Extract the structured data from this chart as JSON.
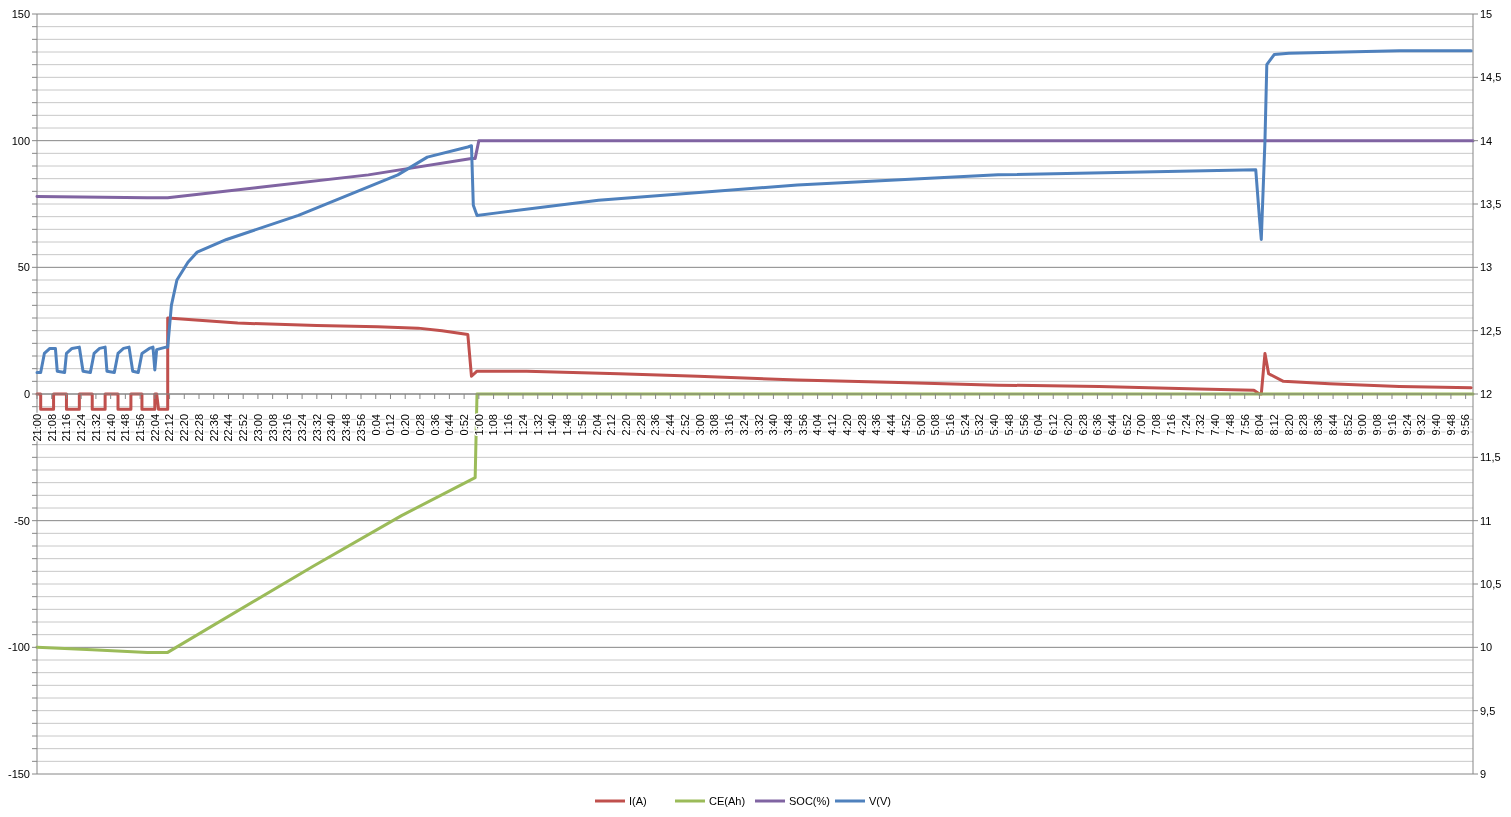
{
  "chart_data": {
    "type": "line",
    "legend": "bottom",
    "grid": "y",
    "line_style": "solid",
    "marker": "none",
    "xlim": [
      "2000-01-01T21:00",
      "2000-01-02T10:00"
    ],
    "xticks": [
      {
        "value": "2000-01-01T21:00",
        "label": "21:00"
      },
      {
        "value": "2000-01-01T21:08",
        "label": "21:08"
      },
      {
        "value": "2000-01-01T21:16",
        "label": "21:16"
      },
      {
        "value": "2000-01-01T21:24",
        "label": "21:24"
      },
      {
        "value": "2000-01-01T21:32",
        "label": "21:32"
      },
      {
        "value": "2000-01-01T21:40",
        "label": "21:40"
      },
      {
        "value": "2000-01-01T21:48",
        "label": "21:48"
      },
      {
        "value": "2000-01-01T21:56",
        "label": "21:56"
      },
      {
        "value": "2000-01-01T22:04",
        "label": "22:04"
      },
      {
        "value": "2000-01-01T22:12",
        "label": "22:12"
      },
      {
        "value": "2000-01-01T22:20",
        "label": "22:20"
      },
      {
        "value": "2000-01-01T22:28",
        "label": "22:28"
      },
      {
        "value": "2000-01-01T22:36",
        "label": "22:36"
      },
      {
        "value": "2000-01-01T22:44",
        "label": "22:44"
      },
      {
        "value": "2000-01-01T22:52",
        "label": "22:52"
      },
      {
        "value": "2000-01-01T23:00",
        "label": "23:00"
      },
      {
        "value": "2000-01-01T23:08",
        "label": "23:08"
      },
      {
        "value": "2000-01-01T23:16",
        "label": "23:16"
      },
      {
        "value": "2000-01-01T23:24",
        "label": "23:24"
      },
      {
        "value": "2000-01-01T23:32",
        "label": "23:32"
      },
      {
        "value": "2000-01-01T23:40",
        "label": "23:40"
      },
      {
        "value": "2000-01-01T23:48",
        "label": "23:48"
      },
      {
        "value": "2000-01-01T23:56",
        "label": "23:56"
      },
      {
        "value": "2000-01-02T00:04",
        "label": "0:04"
      },
      {
        "value": "2000-01-02T00:12",
        "label": "0:12"
      },
      {
        "value": "2000-01-02T00:20",
        "label": "0:20"
      },
      {
        "value": "2000-01-02T00:28",
        "label": "0:28"
      },
      {
        "value": "2000-01-02T00:36",
        "label": "0:36"
      },
      {
        "value": "2000-01-02T00:44",
        "label": "0:44"
      },
      {
        "value": "2000-01-02T00:52",
        "label": "0:52"
      },
      {
        "value": "2000-01-02T01:00",
        "label": "1:00"
      },
      {
        "value": "2000-01-02T01:08",
        "label": "1:08"
      },
      {
        "value": "2000-01-02T01:16",
        "label": "1:16"
      },
      {
        "value": "2000-01-02T01:24",
        "label": "1:24"
      },
      {
        "value": "2000-01-02T01:32",
        "label": "1:32"
      },
      {
        "value": "2000-01-02T01:40",
        "label": "1:40"
      },
      {
        "value": "2000-01-02T01:48",
        "label": "1:48"
      },
      {
        "value": "2000-01-02T01:56",
        "label": "1:56"
      },
      {
        "value": "2000-01-02T02:04",
        "label": "2:04"
      },
      {
        "value": "2000-01-02T02:12",
        "label": "2:12"
      },
      {
        "value": "2000-01-02T02:20",
        "label": "2:20"
      },
      {
        "value": "2000-01-02T02:28",
        "label": "2:28"
      },
      {
        "value": "2000-01-02T02:36",
        "label": "2:36"
      },
      {
        "value": "2000-01-02T02:44",
        "label": "2:44"
      },
      {
        "value": "2000-01-02T02:52",
        "label": "2:52"
      },
      {
        "value": "2000-01-02T03:00",
        "label": "3:00"
      },
      {
        "value": "2000-01-02T03:08",
        "label": "3:08"
      },
      {
        "value": "2000-01-02T03:16",
        "label": "3:16"
      },
      {
        "value": "2000-01-02T03:24",
        "label": "3:24"
      },
      {
        "value": "2000-01-02T03:32",
        "label": "3:32"
      },
      {
        "value": "2000-01-02T03:40",
        "label": "3:40"
      },
      {
        "value": "2000-01-02T03:48",
        "label": "3:48"
      },
      {
        "value": "2000-01-02T03:56",
        "label": "3:56"
      },
      {
        "value": "2000-01-02T04:04",
        "label": "4:04"
      },
      {
        "value": "2000-01-02T04:12",
        "label": "4:12"
      },
      {
        "value": "2000-01-02T04:20",
        "label": "4:20"
      },
      {
        "value": "2000-01-02T04:28",
        "label": "4:28"
      },
      {
        "value": "2000-01-02T04:36",
        "label": "4:36"
      },
      {
        "value": "2000-01-02T04:44",
        "label": "4:44"
      },
      {
        "value": "2000-01-02T04:52",
        "label": "4:52"
      },
      {
        "value": "2000-01-02T05:00",
        "label": "5:00"
      },
      {
        "value": "2000-01-02T05:08",
        "label": "5:08"
      },
      {
        "value": "2000-01-02T05:16",
        "label": "5:16"
      },
      {
        "value": "2000-01-02T05:24",
        "label": "5:24"
      },
      {
        "value": "2000-01-02T05:32",
        "label": "5:32"
      },
      {
        "value": "2000-01-02T05:40",
        "label": "5:40"
      },
      {
        "value": "2000-01-02T05:48",
        "label": "5:48"
      },
      {
        "value": "2000-01-02T05:56",
        "label": "5:56"
      },
      {
        "value": "2000-01-02T06:04",
        "label": "6:04"
      },
      {
        "value": "2000-01-02T06:12",
        "label": "6:12"
      },
      {
        "value": "2000-01-02T06:20",
        "label": "6:20"
      },
      {
        "value": "2000-01-02T06:28",
        "label": "6:28"
      },
      {
        "value": "2000-01-02T06:36",
        "label": "6:36"
      },
      {
        "value": "2000-01-02T06:44",
        "label": "6:44"
      },
      {
        "value": "2000-01-02T06:52",
        "label": "6:52"
      },
      {
        "value": "2000-01-02T07:00",
        "label": "7:00"
      },
      {
        "value": "2000-01-02T07:08",
        "label": "7:08"
      },
      {
        "value": "2000-01-02T07:16",
        "label": "7:16"
      },
      {
        "value": "2000-01-02T07:24",
        "label": "7:24"
      },
      {
        "value": "2000-01-02T07:32",
        "label": "7:32"
      },
      {
        "value": "2000-01-02T07:40",
        "label": "7:40"
      },
      {
        "value": "2000-01-02T07:48",
        "label": "7:48"
      },
      {
        "value": "2000-01-02T07:56",
        "label": "7:56"
      },
      {
        "value": "2000-01-02T08:04",
        "label": "8:04"
      },
      {
        "value": "2000-01-02T08:12",
        "label": "8:12"
      },
      {
        "value": "2000-01-02T08:20",
        "label": "8:20"
      },
      {
        "value": "2000-01-02T08:28",
        "label": "8:28"
      },
      {
        "value": "2000-01-02T08:36",
        "label": "8:36"
      },
      {
        "value": "2000-01-02T08:44",
        "label": "8:44"
      },
      {
        "value": "2000-01-02T08:52",
        "label": "8:52"
      },
      {
        "value": "2000-01-02T09:00",
        "label": "9:00"
      },
      {
        "value": "2000-01-02T09:08",
        "label": "9:08"
      },
      {
        "value": "2000-01-02T09:16",
        "label": "9:16"
      },
      {
        "value": "2000-01-02T09:24",
        "label": "9:24"
      },
      {
        "value": "2000-01-02T09:32",
        "label": "9:32"
      },
      {
        "value": "2000-01-02T09:40",
        "label": "9:40"
      },
      {
        "value": "2000-01-02T09:48",
        "label": "9:48"
      },
      {
        "value": "2000-01-02T09:56",
        "label": "9:56"
      }
    ],
    "ylim": [
      -150,
      150
    ],
    "yticks": [
      -150,
      {
        "value": -145,
        "label": null
      },
      {
        "value": -140,
        "label": null
      },
      {
        "value": -135,
        "label": null
      },
      {
        "value": -130,
        "label": null
      },
      {
        "value": -125,
        "label": null
      },
      {
        "value": -120,
        "label": null
      },
      {
        "value": -115,
        "label": null
      },
      {
        "value": -110,
        "label": null
      },
      {
        "value": -105,
        "label": null
      },
      -100,
      {
        "value": -95,
        "label": null
      },
      {
        "value": -90,
        "label": null
      },
      {
        "value": -85,
        "label": null
      },
      {
        "value": -80,
        "label": null
      },
      {
        "value": -75,
        "label": null
      },
      {
        "value": -70,
        "label": null
      },
      {
        "value": -65,
        "label": null
      },
      {
        "value": -60,
        "label": null
      },
      {
        "value": -55,
        "label": null
      },
      -50,
      {
        "value": -45,
        "label": null
      },
      {
        "value": -40,
        "label": null
      },
      {
        "value": -35,
        "label": null
      },
      {
        "value": -30,
        "label": null
      },
      {
        "value": -25,
        "label": null
      },
      {
        "value": -20,
        "label": null
      },
      {
        "value": -15,
        "label": null
      },
      {
        "value": -10,
        "label": null
      },
      {
        "value": -5,
        "label": null
      },
      0,
      {
        "value": 5,
        "label": null
      },
      {
        "value": 10,
        "label": null
      },
      {
        "value": 15,
        "label": null
      },
      {
        "value": 20,
        "label": null
      },
      {
        "value": 25,
        "label": null
      },
      {
        "value": 30,
        "label": null
      },
      {
        "value": 35,
        "label": null
      },
      {
        "value": 40,
        "label": null
      },
      {
        "value": 45,
        "label": null
      },
      50,
      {
        "value": 55,
        "label": null
      },
      {
        "value": 60,
        "label": null
      },
      {
        "value": 65,
        "label": null
      },
      {
        "value": 70,
        "label": null
      },
      {
        "value": 75,
        "label": null
      },
      {
        "value": 80,
        "label": null
      },
      {
        "value": 85,
        "label": null
      },
      {
        "value": 90,
        "label": null
      },
      {
        "value": 95,
        "label": null
      },
      100,
      {
        "value": 105,
        "label": null
      },
      {
        "value": 110,
        "label": null
      },
      {
        "value": 115,
        "label": null
      },
      {
        "value": 120,
        "label": null
      },
      {
        "value": 125,
        "label": null
      },
      {
        "value": 130,
        "label": null
      },
      {
        "value": 135,
        "label": null
      },
      {
        "value": 140,
        "label": null
      },
      {
        "value": 145,
        "label": null
      },
      150
    ],
    "y2lim": [
      9,
      15
    ],
    "y2ticks": [
      9,
      {
        "value": 9.5,
        "label": "9,5"
      },
      10,
      {
        "value": 10.5,
        "label": "10,5"
      },
      11,
      {
        "value": 11.5,
        "label": "11,5"
      },
      12,
      {
        "value": 12.5,
        "label": "12,5"
      },
      13,
      {
        "value": 13.5,
        "label": "13,5"
      },
      14,
      {
        "value": 14.5,
        "label": "14,5"
      },
      15
    ],
    "series": [
      {
        "name": "I(A)",
        "color": "#c0504d",
        "x": [
          "2000-01-01T21:00",
          "2000-01-01T21:02",
          "2000-01-01T21:02",
          "2000-01-01T21:09",
          "2000-01-01T21:09",
          "2000-01-01T21:16",
          "2000-01-01T21:16",
          "2000-01-01T21:23",
          "2000-01-01T21:23",
          "2000-01-01T21:30",
          "2000-01-01T21:30",
          "2000-01-01T21:37",
          "2000-01-01T21:37",
          "2000-01-01T21:44",
          "2000-01-01T21:44",
          "2000-01-01T21:51",
          "2000-01-01T21:51",
          "2000-01-01T21:57",
          "2000-01-01T21:57",
          "2000-01-01T22:04",
          "2000-01-01T22:04",
          "2000-01-01T22:05",
          "2000-01-01T22:06",
          "2000-01-01T22:11",
          "2000-01-01T22:11",
          "2000-01-01T22:49",
          "2000-01-01T23:32",
          "2000-01-02T00:05",
          "2000-01-02T00:27",
          "2000-01-02T00:40",
          "2000-01-02T00:54",
          "2000-01-02T00:56",
          "2000-01-02T00:59",
          "2000-01-02T01:26",
          "2000-01-02T02:16",
          "2000-01-02T02:59",
          "2000-01-02T03:53",
          "2000-01-02T04:48",
          "2000-01-02T05:42",
          "2000-01-02T06:37",
          "2000-01-02T07:31",
          "2000-01-02T08:01",
          "2000-01-02T08:04",
          "2000-01-02T08:05",
          "2000-01-02T08:07",
          "2000-01-02T08:09",
          "2000-01-02T08:17",
          "2000-01-02T08:42",
          "2000-01-02T09:20",
          "2000-01-02T09:59"
        ],
        "values": [
          0,
          0,
          -6,
          -6,
          0,
          0,
          -6,
          -6,
          0,
          0,
          -6,
          -6,
          0,
          0,
          -6,
          -6,
          0,
          0,
          -6,
          -6,
          0,
          0,
          -6,
          -6,
          30,
          28,
          27,
          26.5,
          26,
          25,
          23.5,
          7,
          9,
          9,
          8,
          7,
          5.5,
          4.5,
          3.5,
          3,
          2,
          1.5,
          0,
          0,
          16,
          8,
          5,
          4,
          3,
          2.5
        ]
      },
      {
        "name": "CE(Ah)",
        "color": "#9bbb59",
        "x": [
          "2000-01-01T21:00",
          "2000-01-01T21:30",
          "2000-01-01T22:00",
          "2000-01-01T22:11",
          "2000-01-01T23:30",
          "2000-01-02T00:18",
          "2000-01-02T00:58",
          "2000-01-02T00:59",
          "2000-01-02T10:00"
        ],
        "values": [
          -100,
          -101,
          -102,
          -102,
          -68,
          -48,
          -33,
          0,
          0
        ]
      },
      {
        "name": "SOC(%)",
        "color": "#8064a2",
        "x": [
          "2000-01-01T21:00",
          "2000-01-01T22:00",
          "2000-01-01T22:11",
          "2000-01-01T23:00",
          "2000-01-02T00:00",
          "2000-01-02T00:56",
          "2000-01-02T00:58",
          "2000-01-02T01:00",
          "2000-01-02T10:00"
        ],
        "values": [
          78,
          77.5,
          77.5,
          81.5,
          86.5,
          93,
          93,
          100,
          100
        ]
      },
      {
        "name": "V(V)",
        "color": "#4f81bd",
        "axis": "y2",
        "x": [
          "2000-01-01T21:00",
          "2000-01-01T21:02",
          "2000-01-01T21:04",
          "2000-01-01T21:07",
          "2000-01-01T21:10",
          "2000-01-01T21:11",
          "2000-01-01T21:15",
          "2000-01-01T21:16",
          "2000-01-01T21:19",
          "2000-01-01T21:23",
          "2000-01-01T21:25",
          "2000-01-01T21:29",
          "2000-01-01T21:31",
          "2000-01-01T21:34",
          "2000-01-01T21:37",
          "2000-01-01T21:38",
          "2000-01-01T21:42",
          "2000-01-01T21:44",
          "2000-01-01T21:47",
          "2000-01-01T21:50",
          "2000-01-01T21:52",
          "2000-01-01T21:55",
          "2000-01-01T21:57",
          "2000-01-01T22:01",
          "2000-01-01T22:03",
          "2000-01-01T22:04",
          "2000-01-01T22:05",
          "2000-01-01T22:10",
          "2000-01-01T22:11",
          "2000-01-01T22:13",
          "2000-01-01T22:16",
          "2000-01-01T22:22",
          "2000-01-01T22:27",
          "2000-01-01T22:43",
          "2000-01-01T23:22",
          "2000-01-02T00:16",
          "2000-01-02T00:32",
          "2000-01-02T00:54",
          "2000-01-02T00:56",
          "2000-01-02T00:57",
          "2000-01-02T00:59",
          "2000-01-02T01:10",
          "2000-01-02T02:05",
          "2000-01-02T03:53",
          "2000-01-02T05:42",
          "2000-01-02T08:02",
          "2000-01-02T08:04",
          "2000-01-02T08:05",
          "2000-01-02T08:07",
          "2000-01-02T08:08",
          "2000-01-02T08:12",
          "2000-01-02T08:20",
          "2000-01-02T09:20",
          "2000-01-02T09:59"
        ],
        "values": [
          12.17,
          12.17,
          12.32,
          12.36,
          12.36,
          12.18,
          12.17,
          12.32,
          12.36,
          12.37,
          12.18,
          12.17,
          12.32,
          12.36,
          12.37,
          12.18,
          12.17,
          12.32,
          12.36,
          12.37,
          12.18,
          12.17,
          12.32,
          12.36,
          12.37,
          12.19,
          12.35,
          12.37,
          12.37,
          12.7,
          12.9,
          13.04,
          13.12,
          13.22,
          13.41,
          13.73,
          13.87,
          13.95,
          13.96,
          13.49,
          13.41,
          13.43,
          13.53,
          13.65,
          13.73,
          13.77,
          13.39,
          13.22,
          14,
          14.6,
          14.68,
          14.69,
          14.71,
          14.71
        ]
      }
    ]
  }
}
